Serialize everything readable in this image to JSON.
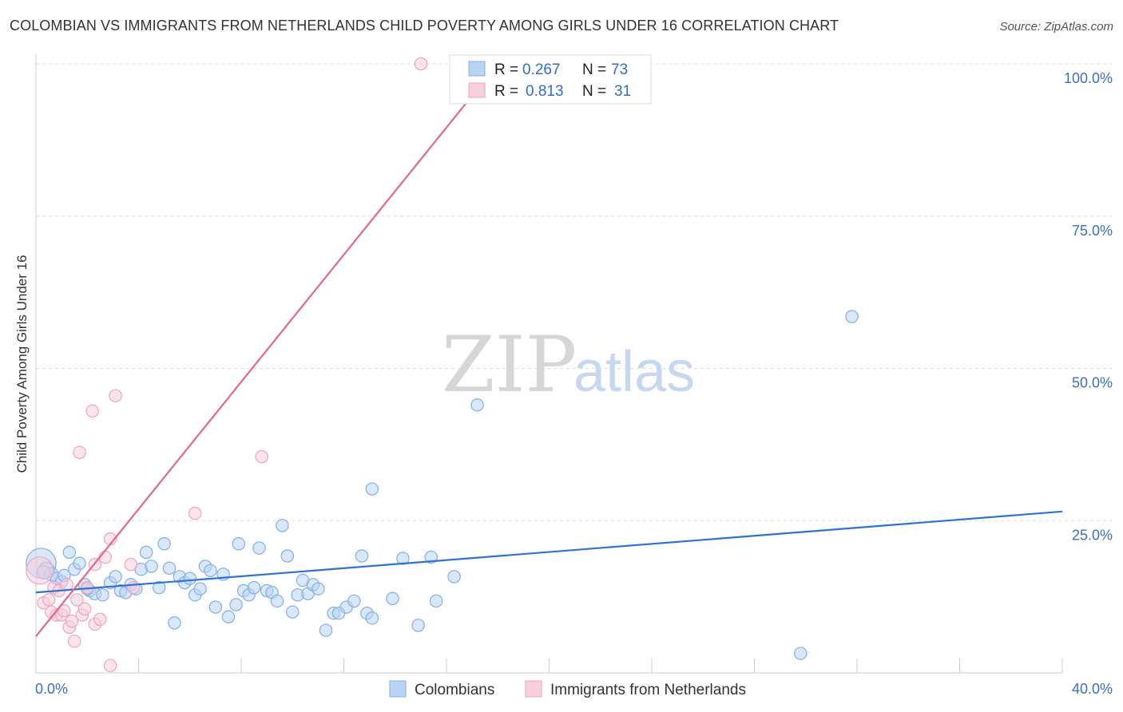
{
  "chart_data": {
    "type": "scatter",
    "title": "COLOMBIAN VS IMMIGRANTS FROM NETHERLANDS CHILD POVERTY AMONG GIRLS UNDER 16 CORRELATION CHART",
    "source": "Source: ZipAtlas.com",
    "xlabel": "",
    "ylabel": "Child Poverty Among Girls Under 16",
    "xlim": [
      0,
      40
    ],
    "ylim": [
      0,
      100
    ],
    "x_tick_labels": {
      "min": "0.0%",
      "max": "40.0%"
    },
    "y_ticks": [
      {
        "value": 25,
        "label": "25.0%"
      },
      {
        "value": 50,
        "label": "50.0%"
      },
      {
        "value": 75,
        "label": "75.0%"
      },
      {
        "value": 100,
        "label": "100.0%"
      }
    ],
    "watermark": {
      "zip": "ZIP",
      "atlas": "atlas"
    },
    "legend": {
      "entries": [
        {
          "r_label": "R = ",
          "r_value": "0.267",
          "n_label": "N = ",
          "n_value": "73"
        },
        {
          "r_label": "R = ",
          "r_value": "0.813",
          "n_label": "N = ",
          "n_value": "31"
        }
      ]
    },
    "series": [
      {
        "name": "Colombians",
        "color": "#7fb0e8",
        "fill": "#b9d3f3",
        "line_color": "#2f72d0",
        "trend": {
          "x0": 0,
          "y0": 13.2,
          "x1": 40,
          "y1": 26.5
        },
        "points": [
          [
            0.2,
            18.0,
            2.2
          ],
          [
            0.4,
            16.8,
            1.2
          ],
          [
            0.6,
            16.2,
            1.0
          ],
          [
            0.8,
            15.5,
            0.9
          ],
          [
            1.0,
            15.0,
            0.9
          ],
          [
            1.3,
            19.8,
            0.9
          ],
          [
            1.5,
            17.0,
            0.9
          ],
          [
            1.7,
            18.0,
            0.9
          ],
          [
            1.9,
            14.5,
            0.9
          ],
          [
            2.1,
            13.5,
            0.9
          ],
          [
            2.3,
            13.0,
            0.9
          ],
          [
            2.6,
            12.8,
            0.9
          ],
          [
            2.9,
            14.8,
            0.9
          ],
          [
            3.1,
            15.8,
            0.9
          ],
          [
            3.3,
            13.5,
            0.9
          ],
          [
            3.5,
            13.2,
            0.9
          ],
          [
            3.7,
            14.5,
            0.9
          ],
          [
            3.9,
            13.8,
            0.9
          ],
          [
            4.1,
            17.0,
            0.9
          ],
          [
            4.3,
            19.8,
            0.9
          ],
          [
            4.5,
            17.5,
            0.9
          ],
          [
            4.8,
            14.0,
            0.9
          ],
          [
            5.0,
            21.2,
            0.9
          ],
          [
            5.2,
            17.2,
            0.9
          ],
          [
            5.4,
            8.2,
            0.9
          ],
          [
            5.6,
            15.8,
            0.9
          ],
          [
            5.8,
            14.8,
            0.9
          ],
          [
            6.0,
            15.5,
            0.9
          ],
          [
            6.2,
            12.8,
            0.9
          ],
          [
            6.4,
            13.8,
            0.9
          ],
          [
            6.6,
            17.5,
            0.9
          ],
          [
            6.8,
            16.8,
            0.9
          ],
          [
            7.0,
            10.8,
            0.9
          ],
          [
            7.3,
            16.2,
            0.9
          ],
          [
            7.5,
            9.2,
            0.9
          ],
          [
            7.8,
            11.2,
            0.9
          ],
          [
            7.9,
            21.2,
            0.9
          ],
          [
            8.1,
            13.5,
            0.9
          ],
          [
            8.3,
            12.8,
            0.9
          ],
          [
            8.5,
            14.0,
            0.9
          ],
          [
            8.7,
            20.5,
            0.9
          ],
          [
            9.0,
            13.5,
            0.9
          ],
          [
            9.2,
            13.2,
            0.9
          ],
          [
            9.4,
            11.8,
            0.9
          ],
          [
            9.6,
            24.2,
            0.9
          ],
          [
            9.8,
            19.2,
            0.9
          ],
          [
            10.0,
            10.0,
            0.9
          ],
          [
            10.2,
            12.8,
            0.9
          ],
          [
            10.4,
            15.2,
            0.9
          ],
          [
            10.6,
            13.0,
            0.9
          ],
          [
            10.8,
            14.5,
            0.9
          ],
          [
            11.0,
            13.8,
            0.9
          ],
          [
            11.3,
            7.0,
            0.9
          ],
          [
            11.6,
            9.8,
            0.9
          ],
          [
            11.8,
            9.8,
            0.9
          ],
          [
            12.1,
            10.8,
            0.9
          ],
          [
            12.4,
            11.8,
            0.9
          ],
          [
            12.7,
            19.2,
            0.9
          ],
          [
            12.9,
            9.8,
            0.9
          ],
          [
            13.1,
            9.0,
            0.9
          ],
          [
            13.1,
            30.2,
            0.9
          ],
          [
            13.9,
            12.2,
            0.9
          ],
          [
            14.3,
            18.8,
            0.9
          ],
          [
            14.9,
            7.8,
            0.9
          ],
          [
            15.4,
            19.0,
            0.9
          ],
          [
            15.6,
            11.8,
            0.9
          ],
          [
            16.3,
            15.8,
            0.9
          ],
          [
            17.2,
            44.0,
            0.9
          ],
          [
            31.8,
            58.5,
            0.9
          ],
          [
            29.8,
            3.2,
            0.9
          ],
          [
            1.1,
            16.0,
            0.9
          ],
          [
            2.0,
            13.8,
            0.9
          ],
          [
            0.3,
            16.5,
            1.0
          ]
        ]
      },
      {
        "name": "Immigrants from Netherlands",
        "color": "#f0a3bd",
        "fill": "#f8cfdc",
        "line_color": "#e2668f",
        "trend": {
          "x0": 0,
          "y0": 6.0,
          "x1": 18.0,
          "y1": 100.0
        },
        "points": [
          [
            0.15,
            16.8,
            2.0
          ],
          [
            0.3,
            11.5,
            0.9
          ],
          [
            0.5,
            12.0,
            0.9
          ],
          [
            0.6,
            10.0,
            0.9
          ],
          [
            0.8,
            9.5,
            0.9
          ],
          [
            0.7,
            14.0,
            0.9
          ],
          [
            0.9,
            13.5,
            0.9
          ],
          [
            1.0,
            9.5,
            0.9
          ],
          [
            1.1,
            10.2,
            0.9
          ],
          [
            1.2,
            14.5,
            0.9
          ],
          [
            1.3,
            7.5,
            0.9
          ],
          [
            1.4,
            8.5,
            0.9
          ],
          [
            1.5,
            5.2,
            0.9
          ],
          [
            1.6,
            12.0,
            0.9
          ],
          [
            1.7,
            36.2,
            0.9
          ],
          [
            1.8,
            9.5,
            0.9
          ],
          [
            1.9,
            10.5,
            0.9
          ],
          [
            2.0,
            14.0,
            0.9
          ],
          [
            2.2,
            43.0,
            0.9
          ],
          [
            2.3,
            17.8,
            0.9
          ],
          [
            2.3,
            8.0,
            0.9
          ],
          [
            2.5,
            8.8,
            0.9
          ],
          [
            2.7,
            19.0,
            0.9
          ],
          [
            2.9,
            22.0,
            0.9
          ],
          [
            2.9,
            1.2,
            0.9
          ],
          [
            3.1,
            45.5,
            0.9
          ],
          [
            3.7,
            17.8,
            0.9
          ],
          [
            3.8,
            14.0,
            0.9
          ],
          [
            6.2,
            26.2,
            0.9
          ],
          [
            8.8,
            35.5,
            0.9
          ],
          [
            15.0,
            100.0,
            0.9
          ]
        ]
      }
    ]
  }
}
